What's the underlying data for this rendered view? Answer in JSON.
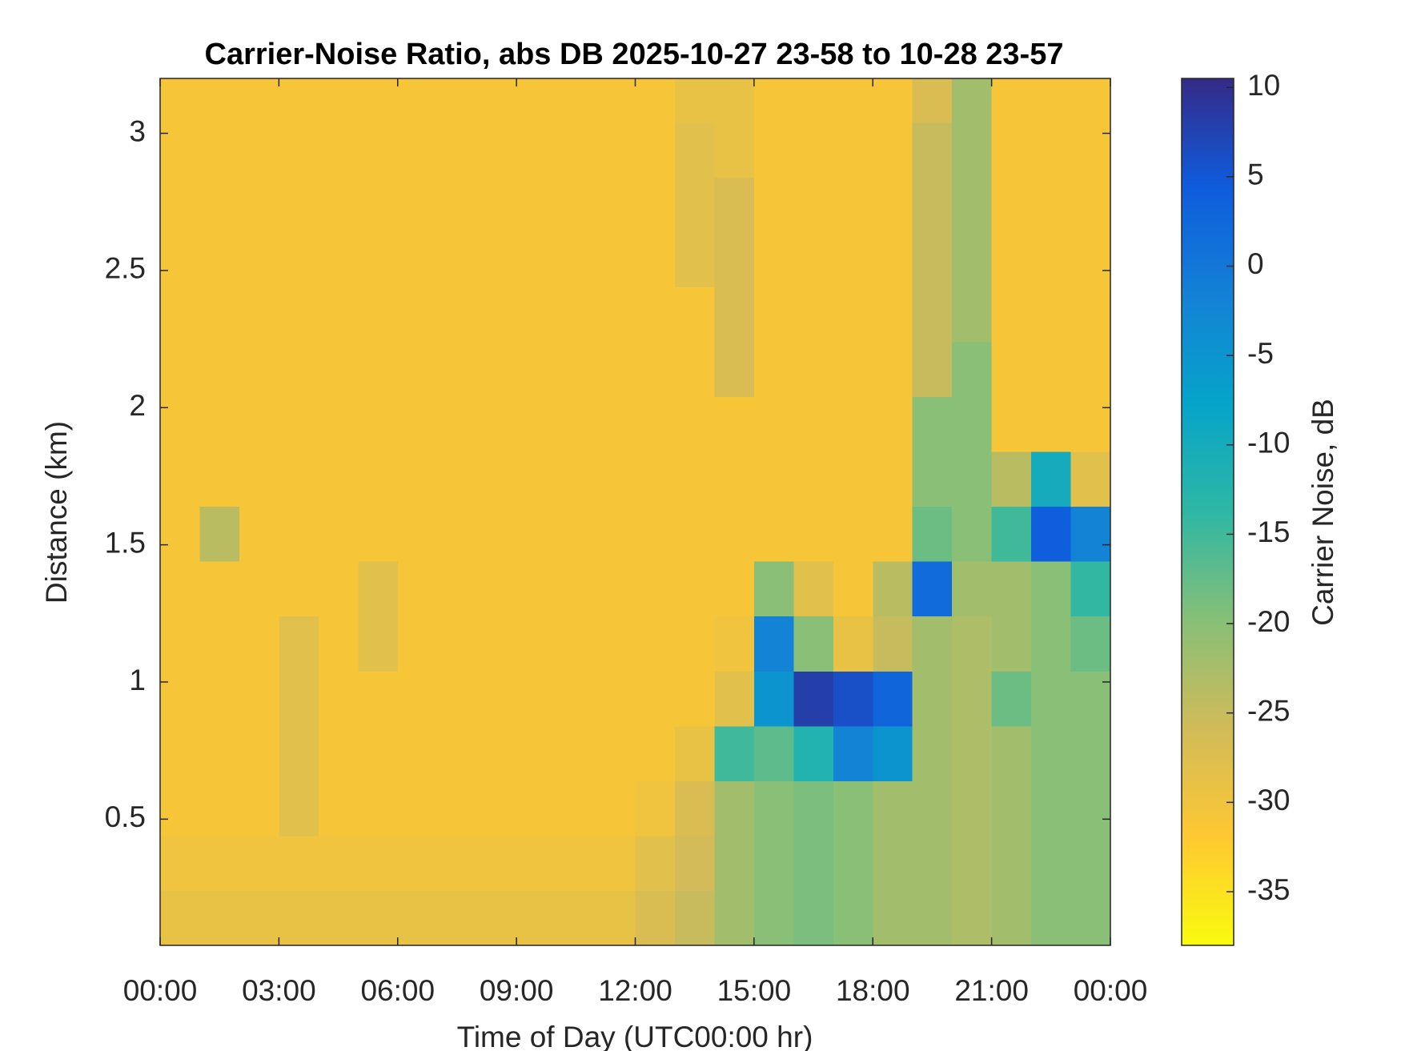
{
  "chart_data": {
    "type": "heatmap",
    "title": "Carrier-Noise Ratio, abs DB 2025-10-27 23-58 to 10-28 23-57",
    "x_label": "Time of Day (UTC00:00 hr)",
    "y_label": "Distance (km)",
    "colorbar_label": "Carrier Noise, dB",
    "xbins": [
      0,
      1,
      2,
      3,
      4,
      5,
      6,
      7,
      8,
      9,
      10,
      11,
      12,
      13,
      14,
      15,
      16,
      17,
      18,
      19,
      20,
      21,
      22,
      23,
      24
    ],
    "ybins": [
      0.04,
      0.24,
      0.44,
      0.64,
      0.84,
      1.04,
      1.24,
      1.44,
      1.64,
      1.84,
      2.04,
      2.24,
      2.44,
      2.64,
      2.84,
      3.04,
      3.2
    ],
    "z": [
      [
        -29,
        -29,
        -29,
        -29,
        -29,
        -29,
        -29,
        -29,
        -29,
        -29,
        -29,
        -29,
        -27,
        -25,
        -22,
        -20,
        -19,
        -20,
        -22,
        -22,
        -23,
        -22,
        -20,
        -20
      ],
      [
        -30,
        -30,
        -30,
        -30,
        -30,
        -30,
        -30,
        -30,
        -30,
        -30,
        -30,
        -30,
        -28,
        -26,
        -22,
        -20,
        -19,
        -20,
        -22,
        -22,
        -23,
        -22,
        -20,
        -20
      ],
      [
        -31,
        -31,
        -31,
        -28,
        -31,
        -31,
        -31,
        -31,
        -31,
        -31,
        -31,
        -31,
        -30,
        -27,
        -22,
        -20,
        -19,
        -20,
        -22,
        -22,
        -23,
        -22,
        -20,
        -20
      ],
      [
        -31,
        -31,
        -31,
        -28,
        -31,
        -31,
        -31,
        -31,
        -31,
        -31,
        -31,
        -31,
        -31,
        -29,
        -15,
        -17,
        -12,
        -2,
        -5,
        -22,
        -23,
        -22,
        -20,
        -20
      ],
      [
        -31,
        -31,
        -31,
        -28,
        -31,
        -31,
        -31,
        -31,
        -31,
        -31,
        -31,
        -31,
        -31,
        -31,
        -28,
        -5,
        8,
        6,
        3,
        -22,
        -23,
        -18,
        -20,
        -20
      ],
      [
        -31,
        -31,
        -31,
        -28,
        -31,
        -28,
        -31,
        -31,
        -31,
        -31,
        -31,
        -31,
        -31,
        -31,
        -30,
        -2,
        -20,
        -29,
        -25,
        -22,
        -23,
        -22,
        -20,
        -18
      ],
      [
        -31,
        -31,
        -31,
        -31,
        -31,
        -28,
        -31,
        -31,
        -31,
        -31,
        -31,
        -31,
        -31,
        -31,
        -31,
        -20,
        -28,
        -31,
        -24,
        2,
        -22,
        -22,
        -20,
        -14
      ],
      [
        -31,
        -24,
        -31,
        -31,
        -31,
        -31,
        -31,
        -31,
        -31,
        -31,
        -31,
        -31,
        -31,
        -31,
        -31,
        -31,
        -31,
        -31,
        -31,
        -18,
        -20,
        -15,
        4,
        -2
      ],
      [
        -31,
        -31,
        -31,
        -31,
        -31,
        -31,
        -31,
        -31,
        -31,
        -31,
        -31,
        -31,
        -31,
        -31,
        -31,
        -31,
        -31,
        -31,
        -31,
        -20,
        -20,
        -24,
        -10,
        -28
      ],
      [
        -31,
        -31,
        -31,
        -31,
        -31,
        -31,
        -31,
        -31,
        -31,
        -31,
        -31,
        -31,
        -31,
        -31,
        -31,
        -31,
        -31,
        -31,
        -31,
        -20,
        -20,
        -31,
        -31,
        -31
      ],
      [
        -31,
        -31,
        -31,
        -31,
        -31,
        -31,
        -31,
        -31,
        -31,
        -31,
        -31,
        -31,
        -31,
        -31,
        -27,
        -31,
        -31,
        -31,
        -31,
        -25,
        -20,
        -31,
        -31,
        -31
      ],
      [
        -31,
        -31,
        -31,
        -31,
        -31,
        -31,
        -31,
        -31,
        -31,
        -31,
        -31,
        -31,
        -31,
        -31,
        -27,
        -31,
        -31,
        -31,
        -31,
        -25,
        -22,
        -31,
        -31,
        -31
      ],
      [
        -31,
        -31,
        -31,
        -31,
        -31,
        -31,
        -31,
        -31,
        -31,
        -31,
        -31,
        -31,
        -31,
        -28,
        -27,
        -31,
        -31,
        -31,
        -31,
        -25,
        -22,
        -31,
        -31,
        -31
      ],
      [
        -31,
        -31,
        -31,
        -31,
        -31,
        -31,
        -31,
        -31,
        -31,
        -31,
        -31,
        -31,
        -31,
        -28,
        -27,
        -31,
        -31,
        -31,
        -31,
        -25,
        -22,
        -31,
        -31,
        -31
      ],
      [
        -31,
        -31,
        -31,
        -31,
        -31,
        -31,
        -31,
        -31,
        -31,
        -31,
        -31,
        -31,
        -31,
        -28,
        -29,
        -31,
        -31,
        -31,
        -31,
        -25,
        -22,
        -31,
        -31,
        -31
      ],
      [
        -31,
        -31,
        -31,
        -31,
        -31,
        -31,
        -31,
        -31,
        -31,
        -31,
        -31,
        -31,
        -31,
        -29,
        -29,
        -31,
        -31,
        -31,
        -31,
        -27,
        -22,
        -31,
        -31,
        -31
      ]
    ],
    "xlim": [
      0,
      24
    ],
    "ylim": [
      0.04,
      3.2
    ],
    "clim": [
      -38,
      10.5
    ],
    "xticks": [
      {
        "value": 0,
        "label": "00:00"
      },
      {
        "value": 3,
        "label": "03:00"
      },
      {
        "value": 6,
        "label": "06:00"
      },
      {
        "value": 9,
        "label": "09:00"
      },
      {
        "value": 12,
        "label": "12:00"
      },
      {
        "value": 15,
        "label": "15:00"
      },
      {
        "value": 18,
        "label": "18:00"
      },
      {
        "value": 21,
        "label": "21:00"
      },
      {
        "value": 24,
        "label": "00:00"
      }
    ],
    "yticks": [
      0.5,
      1,
      1.5,
      2,
      2.5,
      3
    ],
    "cticks": [
      -35,
      -30,
      -25,
      -20,
      -15,
      -10,
      -5,
      0,
      5,
      10
    ],
    "colormap": [
      "#f9fb0e",
      "#fec832",
      "#d1bb59",
      "#87bf77",
      "#2eb7a4",
      "#06a4ca",
      "#1481d6",
      "#0f5cdd",
      "#352a87"
    ]
  }
}
